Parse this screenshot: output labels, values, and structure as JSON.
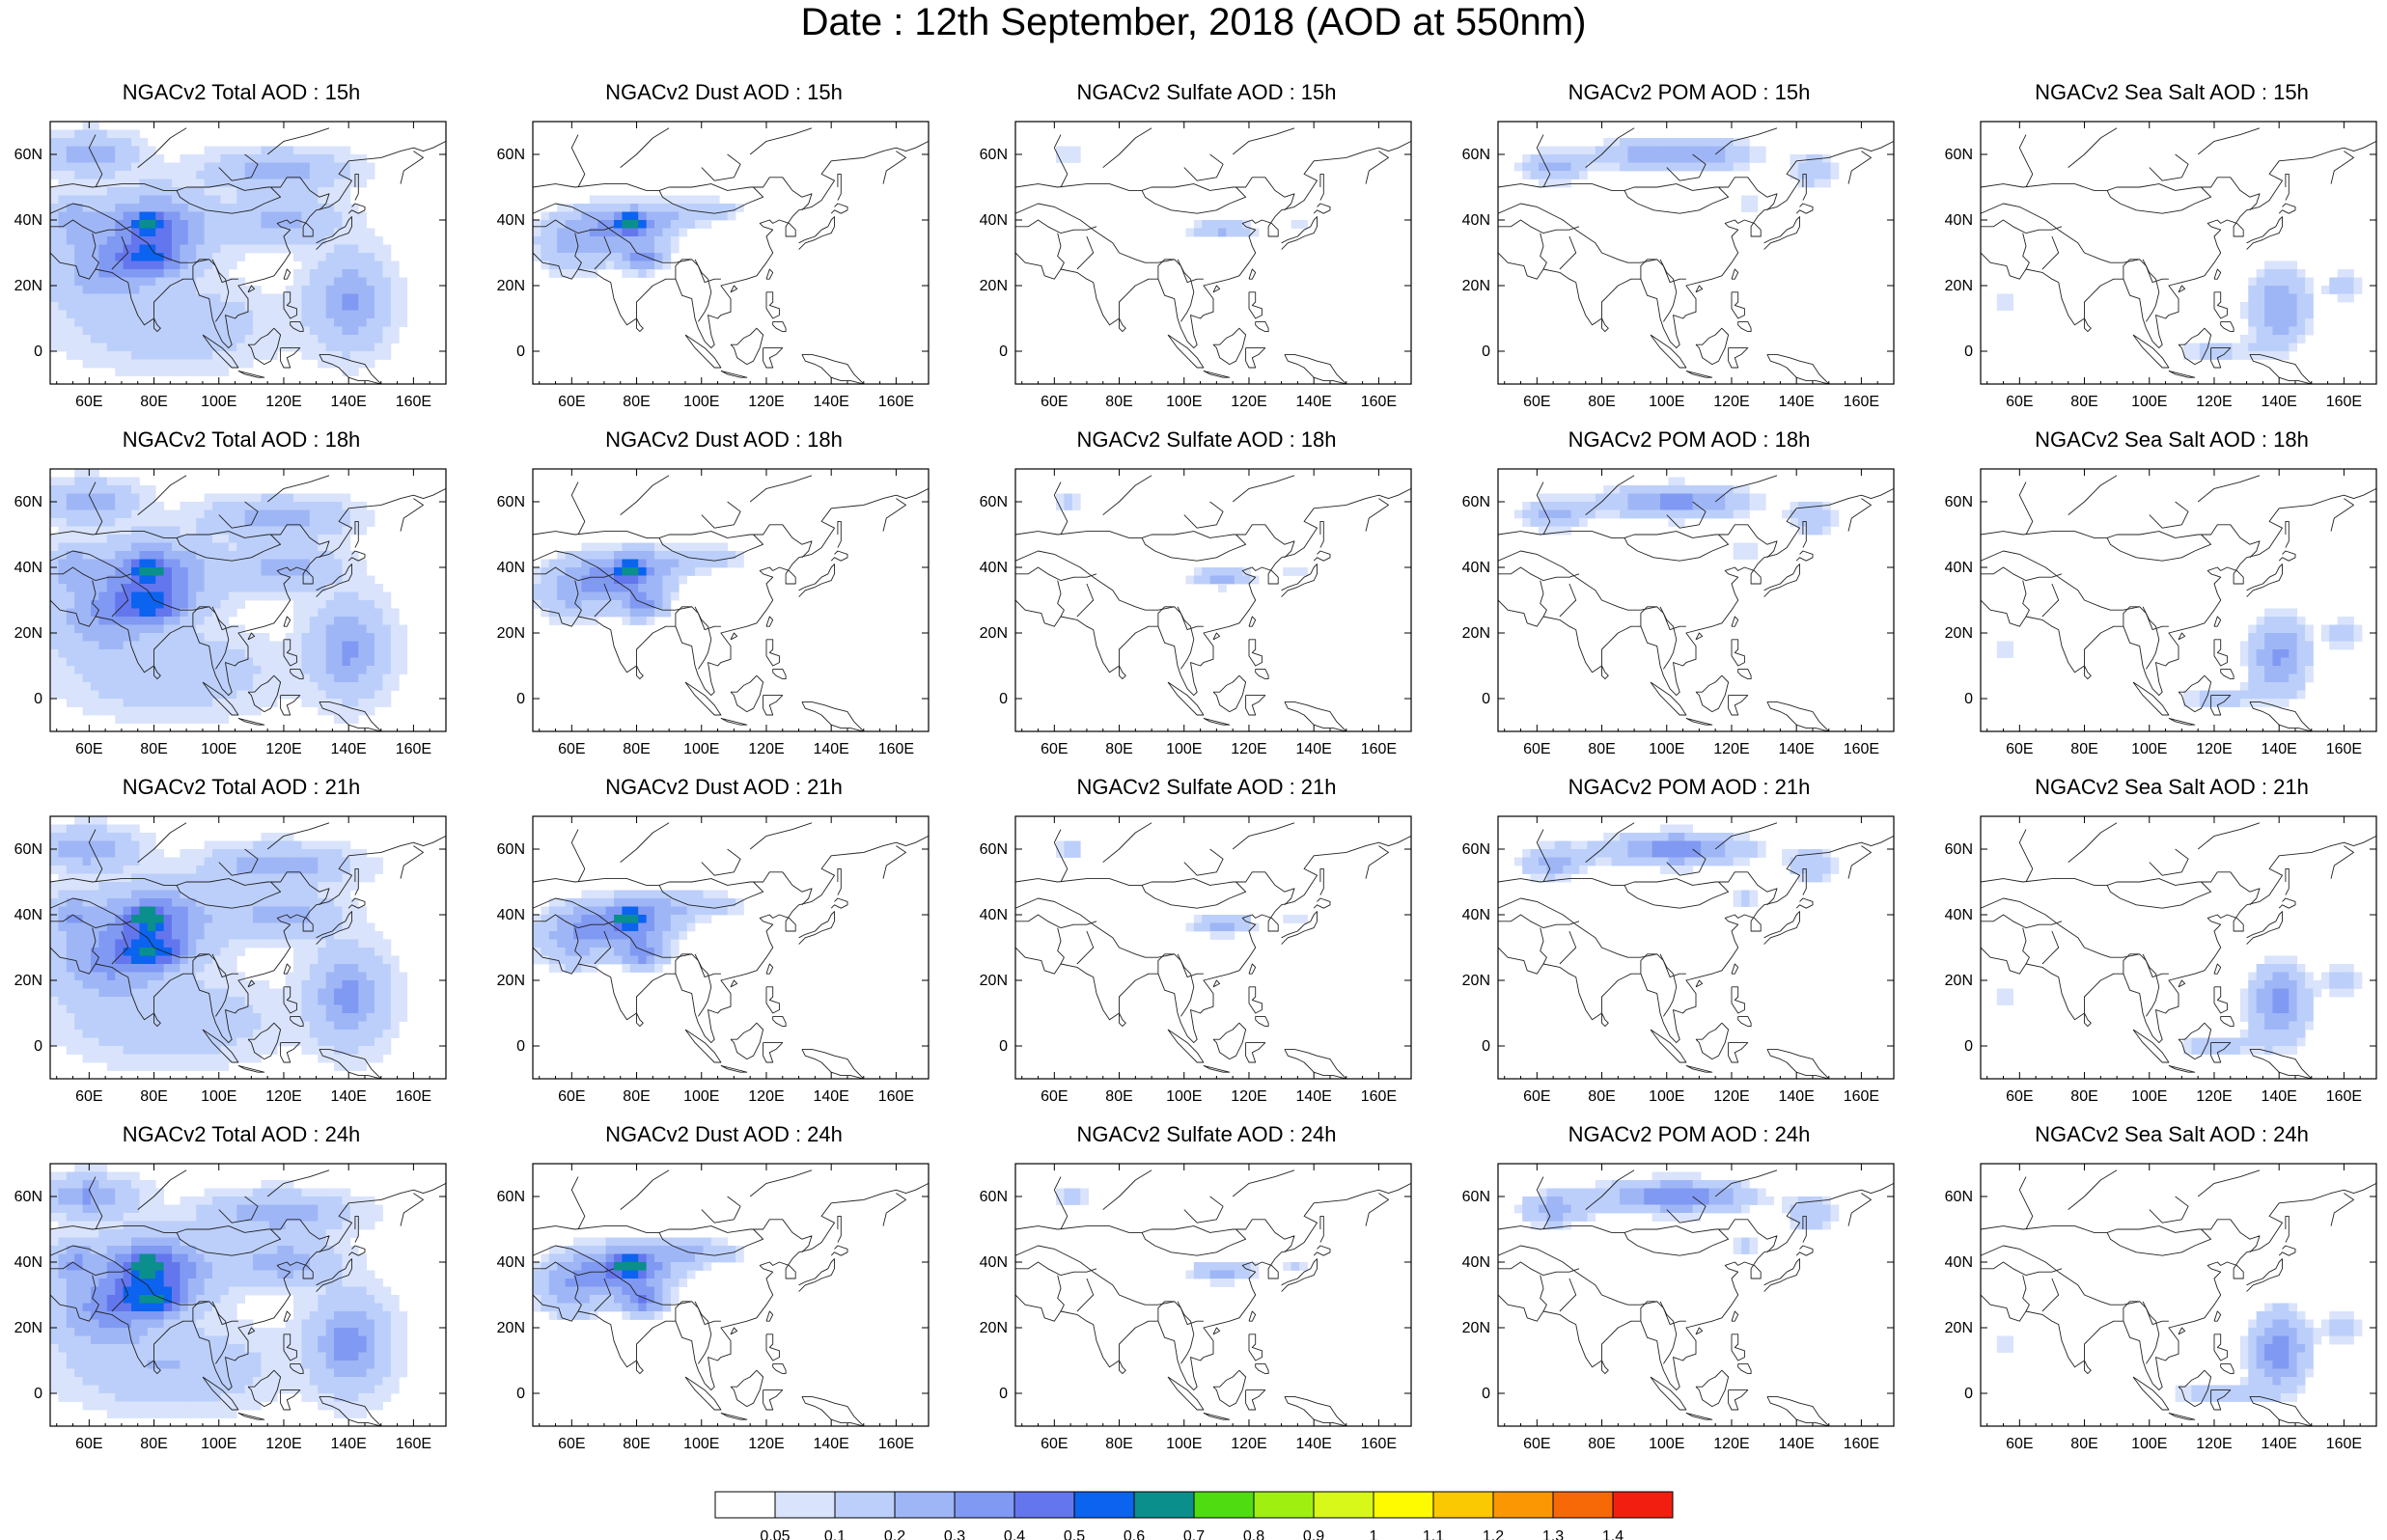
{
  "title": "Date : 12th September, 2018 (AOD at 550nm)",
  "panels": [
    [
      "NGACv2 Total AOD : 15h",
      "NGACv2 Dust AOD : 15h",
      "NGACv2 Sulfate AOD : 15h",
      "NGACv2 POM AOD : 15h",
      "NGACv2 Sea Salt AOD : 15h"
    ],
    [
      "NGACv2 Total AOD : 18h",
      "NGACv2 Dust AOD : 18h",
      "NGACv2 Sulfate AOD : 18h",
      "NGACv2 POM AOD : 18h",
      "NGACv2 Sea Salt AOD : 18h"
    ],
    [
      "NGACv2 Total AOD : 21h",
      "NGACv2 Dust AOD : 21h",
      "NGACv2 Sulfate AOD : 21h",
      "NGACv2 POM AOD : 21h",
      "NGACv2 Sea Salt AOD : 21h"
    ],
    [
      "NGACv2 Total AOD : 24h",
      "NGACv2 Dust AOD : 24h",
      "NGACv2 Sulfate AOD : 24h",
      "NGACv2 POM AOD : 24h",
      "NGACv2 Sea Salt  AOD : 24h"
    ]
  ],
  "map": {
    "lon_range": [
      48,
      170
    ],
    "lat_range": [
      -10,
      70
    ],
    "lon_ticks": [
      "60E",
      "80E",
      "100E",
      "120E",
      "140E",
      "160E"
    ],
    "lon_tick_values": [
      60,
      80,
      100,
      120,
      140,
      160
    ],
    "lat_ticks": [
      "0",
      "20N",
      "40N",
      "60N"
    ],
    "lat_tick_values": [
      0,
      20,
      40,
      60
    ]
  },
  "colorbar": {
    "levels": [
      "0.05",
      "0.1",
      "0.2",
      "0.3",
      "0.4",
      "0.5",
      "0.6",
      "0.7",
      "0.8",
      "0.9",
      "1",
      "1.1",
      "1.2",
      "1.3",
      "1.4"
    ],
    "colors": [
      "#ffffff",
      "#d9e3fb",
      "#bccffa",
      "#9fb6f6",
      "#8099f2",
      "#6476ee",
      "#0b63f0",
      "#0a8f8c",
      "#4fdc10",
      "#9ff010",
      "#d8f819",
      "#fefa00",
      "#fbc902",
      "#fa9702",
      "#f76807",
      "#f21f10"
    ]
  }
}
